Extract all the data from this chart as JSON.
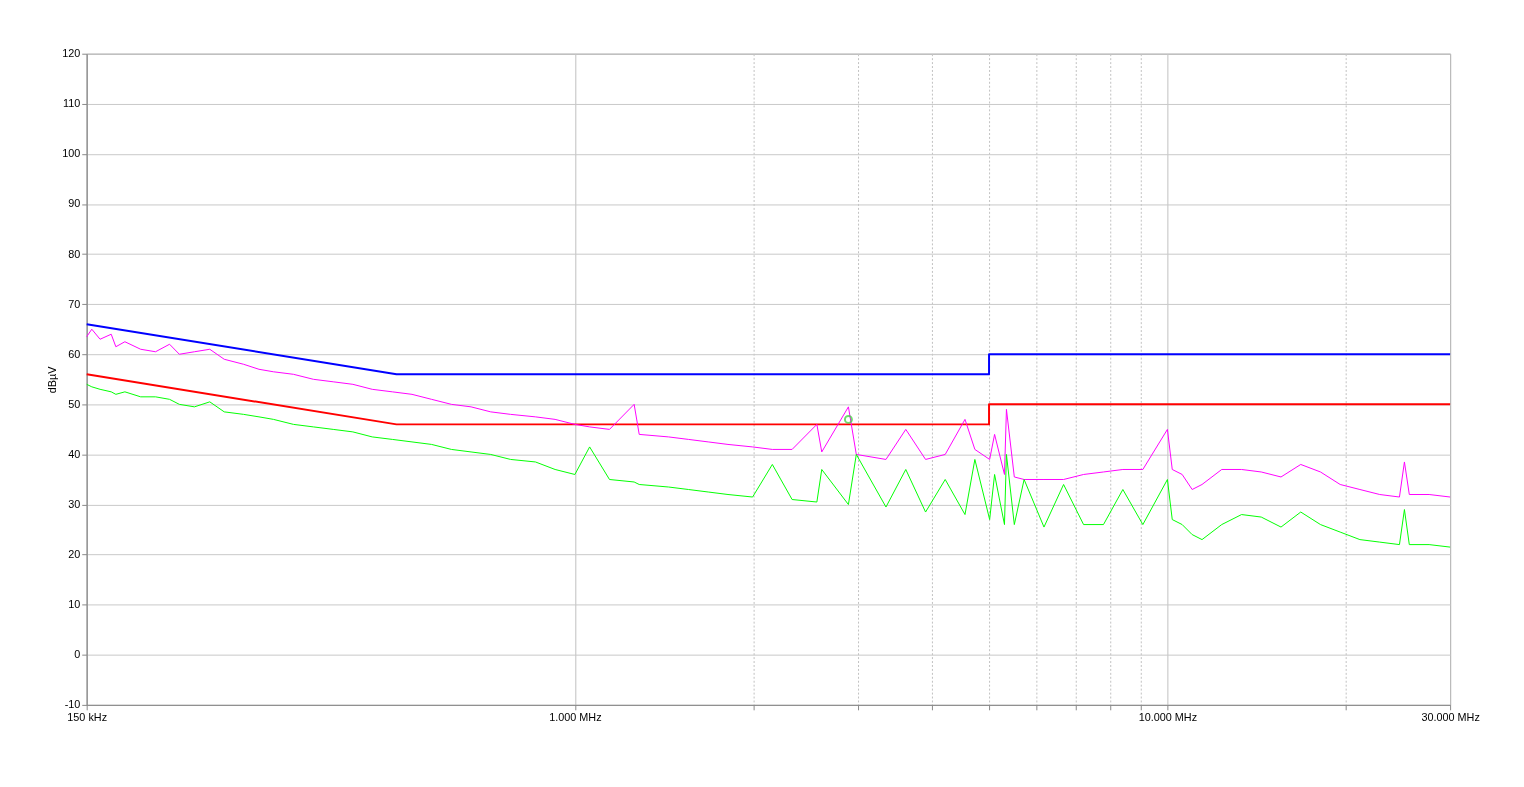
{
  "chart_data": {
    "type": "line",
    "ylabel": "dBµV",
    "xlim": [
      150,
      30000
    ],
    "ylim": [
      -10,
      120
    ],
    "log": "x",
    "grid": true,
    "xticks": [
      {
        "value": 150,
        "label": "150 kHz"
      },
      {
        "value": 1000,
        "label": "1.000 MHz"
      },
      {
        "value": 2000,
        "label": null
      },
      {
        "value": 3000,
        "label": null
      },
      {
        "value": 4000,
        "label": null
      },
      {
        "value": 5000,
        "label": null
      },
      {
        "value": 6000,
        "label": null
      },
      {
        "value": 7000,
        "label": null
      },
      {
        "value": 8000,
        "label": null
      },
      {
        "value": 9000,
        "label": null
      },
      {
        "value": 10000,
        "label": "10.000 MHz"
      },
      {
        "value": 20000,
        "label": null
      },
      {
        "value": 30000,
        "label": "30.000 MHz"
      }
    ],
    "yticks": [
      -10,
      0,
      10,
      20,
      30,
      40,
      50,
      60,
      70,
      80,
      90,
      100,
      110,
      120
    ],
    "series": [
      {
        "color": "#0000ff",
        "x": [
          150,
          500,
          5000,
          5000,
          30000
        ],
        "values": [
          66,
          56,
          56,
          60,
          60
        ]
      },
      {
        "color": "#ff0000",
        "x": [
          150,
          500,
          5000,
          5000,
          30000
        ],
        "values": [
          56,
          46,
          46,
          50,
          50
        ]
      },
      {
        "color": "#ff00ff",
        "x": [
          150,
          153,
          158,
          165,
          168,
          174,
          185,
          196,
          207,
          215,
          228,
          242,
          256,
          276,
          293,
          310,
          335,
          362,
          391,
          422,
          455,
          492,
          531,
          573,
          619,
          668,
          721,
          779,
          858,
          926,
          1000,
          1059,
          1144,
          1259,
          1284,
          1439,
          1555,
          1679,
          1813,
          1995,
          2154,
          2326,
          2561,
          2610,
          2895,
          2985,
          3350,
          3618,
          3907,
          4217,
          4554,
          4732,
          5012,
          5109,
          5309,
          5350,
          5516,
          5730,
          6190,
          6680,
          7220,
          7800,
          8410,
          9090,
          10000,
          10190,
          10590,
          11010,
          11440,
          12350,
          13340,
          14400,
          15550,
          16790,
          18130,
          19570,
          21130,
          22820,
          24640,
          25120,
          25600,
          27650,
          30000
        ],
        "values": [
          63.5,
          65,
          63,
          64,
          61.5,
          62.5,
          61,
          60.5,
          62,
          60,
          60.5,
          61,
          59,
          58,
          57,
          56.5,
          56,
          55,
          54.5,
          54,
          53,
          52.5,
          52,
          51,
          50,
          49.5,
          48.5,
          48,
          47.5,
          47,
          46,
          45.5,
          45,
          50,
          44,
          43.5,
          43,
          42.5,
          42,
          41.5,
          41,
          41,
          46,
          40.5,
          49.5,
          40,
          39,
          45,
          39,
          40,
          47,
          41,
          39,
          44,
          36,
          49,
          35.5,
          35,
          35,
          35,
          36,
          36.5,
          37,
          37,
          45,
          37,
          36,
          33,
          34,
          37,
          37,
          36.5,
          35.5,
          38,
          36.5,
          34,
          33,
          32,
          31.5,
          38.5,
          32,
          32,
          31.5
        ]
      },
      {
        "color": "#00ff00",
        "x": [
          150,
          153,
          158,
          165,
          168,
          174,
          185,
          196,
          207,
          215,
          228,
          242,
          256,
          276,
          293,
          310,
          335,
          362,
          391,
          422,
          455,
          492,
          531,
          573,
          619,
          668,
          721,
          779,
          858,
          926,
          1000,
          1059,
          1144,
          1259,
          1284,
          1439,
          1555,
          1679,
          1813,
          1995,
          2154,
          2326,
          2561,
          2610,
          2895,
          2985,
          3350,
          3618,
          3907,
          4217,
          4554,
          4732,
          5012,
          5109,
          5309,
          5350,
          5516,
          5730,
          6190,
          6680,
          7220,
          7800,
          8410,
          9090,
          10000,
          10190,
          10590,
          11010,
          11440,
          12350,
          13340,
          14400,
          15550,
          16790,
          18130,
          19570,
          21130,
          22820,
          24640,
          25120,
          25600,
          27650,
          30000
        ],
        "values": [
          54,
          53.5,
          53,
          52.5,
          52,
          52.5,
          51.5,
          51.5,
          51,
          50,
          49.5,
          50.5,
          48.5,
          48,
          47.5,
          47,
          46,
          45.5,
          45,
          44.5,
          43.5,
          43,
          42.5,
          42,
          41,
          40.5,
          40,
          39,
          38.5,
          37,
          36,
          41.5,
          35,
          34.5,
          34,
          33.5,
          33,
          32.5,
          32,
          31.5,
          38,
          31,
          30.5,
          37,
          30,
          40,
          29.5,
          37,
          28.5,
          35,
          28,
          39,
          27,
          36,
          26,
          40,
          26,
          35,
          25.5,
          34,
          26,
          26,
          33,
          26,
          35,
          27,
          26,
          24,
          23,
          26,
          28,
          27.5,
          25.5,
          28.5,
          26,
          24.5,
          23,
          22.5,
          22,
          29,
          22,
          22,
          21.5
        ]
      },
      {
        "type": "scatter",
        "color": "#33cc33",
        "marker": "circle",
        "x": [
          2895
        ],
        "values": [
          47
        ]
      }
    ]
  }
}
